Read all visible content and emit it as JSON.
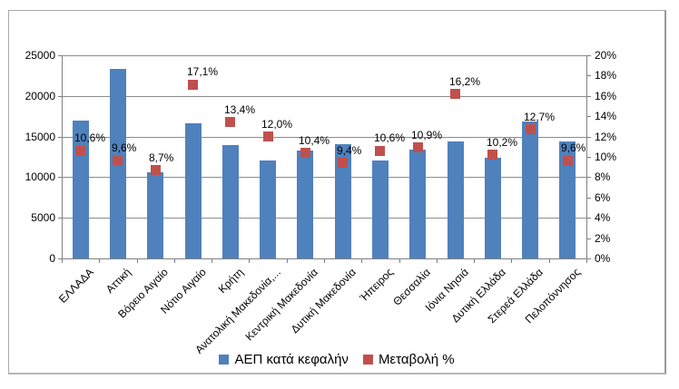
{
  "chart_data": {
    "type": "bar",
    "subtype": "combo-bar-scatter",
    "title": "",
    "xlabel": "",
    "ylabel": "",
    "grid": true,
    "legend_position": "bottom",
    "categories": [
      "ΕΛΛΑΔΑ",
      "Αττική",
      "Βόρειο Αιγαίο",
      "Νότιο Αιγαίο",
      "Κρήτη",
      "Ανατολική Μακεδονία,...",
      "Κεντρική Μακεδονία",
      "Δυτική Μακεδονία",
      "Ήπειρος",
      "Θεσσαλία",
      "Ιόνια Νησιά",
      "Δυτική Ελλάδα",
      "Στερεά Ελλάδα",
      "Πελοπόννησος"
    ],
    "series": [
      {
        "name": "ΑΕΠ κατά κεφαλήν",
        "type": "bar",
        "axis": "left",
        "color": "#4F81BD",
        "values": [
          17000,
          23300,
          10600,
          16600,
          14000,
          12000,
          13300,
          14100,
          12000,
          13400,
          14400,
          12400,
          16800,
          14400
        ]
      },
      {
        "name": "Μεταβολή %",
        "type": "scatter",
        "axis": "right",
        "color": "#C0504D",
        "values": [
          10.6,
          9.6,
          8.7,
          17.1,
          13.4,
          12.0,
          10.4,
          9.4,
          10.6,
          10.9,
          16.2,
          10.2,
          12.7,
          9.6
        ],
        "point_labels": [
          "10,6%",
          "9,6%",
          "8,7%",
          "17,1%",
          "13,4%",
          "12,0%",
          "10,4%",
          "9,4%",
          "10,6%",
          "10,9%",
          "16,2%",
          "10,2%",
          "12,7%",
          "9,6%"
        ]
      }
    ],
    "left_axis": {
      "min": 0,
      "max": 25000,
      "step": 5000,
      "tick_labels": [
        "0",
        "5000",
        "10000",
        "15000",
        "20000",
        "25000"
      ]
    },
    "right_axis": {
      "min": 0,
      "max": 20,
      "step": 2,
      "tick_labels": [
        "0%",
        "2%",
        "4%",
        "6%",
        "8%",
        "10%",
        "12%",
        "14%",
        "16%",
        "18%",
        "20%"
      ]
    }
  },
  "legend": {
    "items": [
      {
        "label": "ΑΕΠ κατά κεφαλήν",
        "color": "#4F81BD"
      },
      {
        "label": "Μεταβολή %",
        "color": "#C0504D"
      }
    ]
  },
  "colors": {
    "bar": "#4F81BD",
    "marker": "#C0504D",
    "gridline": "#8c8c8c",
    "axis": "#7f7f7f",
    "frame_border": "#a8a8a8",
    "background": "#ffffff"
  }
}
